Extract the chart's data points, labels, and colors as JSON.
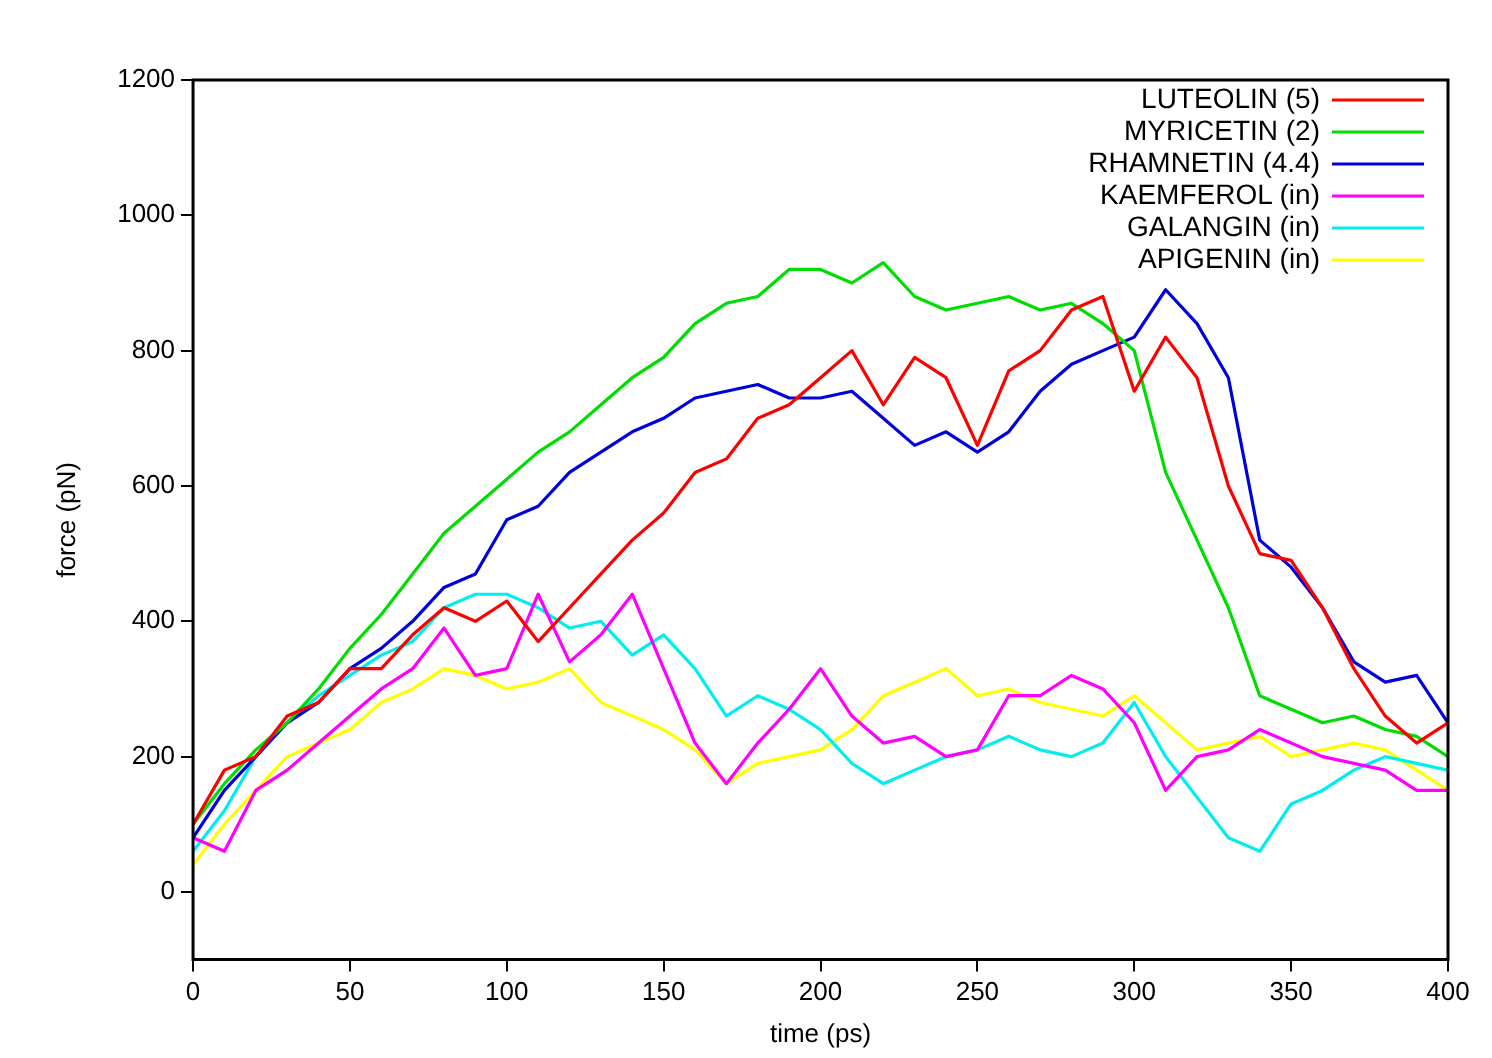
{
  "chart_data": {
    "type": "line",
    "xlabel": "time (ps)",
    "ylabel": "force (pN)",
    "x": [
      0,
      10,
      20,
      30,
      40,
      50,
      60,
      70,
      80,
      90,
      100,
      110,
      120,
      130,
      140,
      150,
      160,
      170,
      180,
      190,
      200,
      210,
      220,
      230,
      240,
      250,
      260,
      270,
      280,
      290,
      300,
      310,
      320,
      330,
      340,
      350,
      360,
      370,
      380,
      390,
      400
    ],
    "series": [
      {
        "name": "LUTEOLIN (5)",
        "color": "#ff0000",
        "values": [
          100,
          180,
          200,
          260,
          280,
          330,
          330,
          380,
          420,
          400,
          430,
          370,
          420,
          470,
          520,
          560,
          620,
          640,
          700,
          720,
          760,
          800,
          720,
          790,
          760,
          660,
          770,
          800,
          860,
          880,
          740,
          820,
          760,
          600,
          500,
          490,
          420,
          330,
          260,
          220,
          250
        ]
      },
      {
        "name": "MYRICETIN (2)",
        "color": "#00dd00",
        "values": [
          100,
          160,
          210,
          250,
          300,
          360,
          410,
          470,
          530,
          570,
          610,
          650,
          680,
          720,
          760,
          790,
          840,
          870,
          880,
          920,
          920,
          900,
          930,
          880,
          860,
          870,
          880,
          860,
          870,
          840,
          800,
          620,
          520,
          420,
          290,
          270,
          250,
          260,
          240,
          230,
          200
        ]
      },
      {
        "name": "RHAMNETIN (4.4)",
        "color": "#0000dd",
        "values": [
          80,
          150,
          200,
          250,
          280,
          330,
          360,
          400,
          450,
          470,
          550,
          570,
          620,
          650,
          680,
          700,
          730,
          740,
          750,
          730,
          730,
          740,
          700,
          660,
          680,
          650,
          680,
          740,
          780,
          800,
          820,
          890,
          840,
          760,
          520,
          480,
          420,
          340,
          310,
          320,
          250
        ]
      },
      {
        "name": "KAEMFEROL (in)",
        "color": "#ff00ff",
        "values": [
          80,
          60,
          150,
          180,
          220,
          260,
          300,
          330,
          390,
          320,
          330,
          440,
          340,
          380,
          440,
          330,
          220,
          160,
          220,
          270,
          330,
          260,
          220,
          230,
          200,
          210,
          290,
          290,
          320,
          300,
          250,
          150,
          200,
          210,
          240,
          220,
          200,
          190,
          180,
          150,
          150
        ]
      },
      {
        "name": "GALANGIN (in)",
        "color": "#00eeee",
        "values": [
          60,
          120,
          200,
          250,
          290,
          320,
          350,
          370,
          420,
          440,
          440,
          420,
          390,
          400,
          350,
          380,
          330,
          260,
          290,
          270,
          240,
          190,
          160,
          180,
          200,
          210,
          230,
          210,
          200,
          220,
          280,
          200,
          140,
          80,
          60,
          130,
          150,
          180,
          200,
          190,
          180
        ]
      },
      {
        "name": "APIGENIN (in)",
        "color": "#ffff00",
        "values": [
          40,
          100,
          150,
          200,
          220,
          240,
          280,
          300,
          330,
          320,
          300,
          310,
          330,
          280,
          260,
          240,
          210,
          160,
          190,
          200,
          210,
          240,
          290,
          310,
          330,
          290,
          300,
          280,
          270,
          260,
          290,
          250,
          210,
          220,
          230,
          200,
          210,
          220,
          210,
          180,
          150
        ]
      }
    ],
    "xlim": [
      0,
      400
    ],
    "xticks": [
      0,
      50,
      100,
      150,
      200,
      250,
      300,
      350,
      400
    ],
    "ylim": [
      -100,
      1200
    ],
    "yticks": [
      0,
      200,
      400,
      600,
      800,
      1000,
      1200
    ],
    "grid": false,
    "legend": "top right",
    "marker": "none",
    "line_style": "solid"
  }
}
